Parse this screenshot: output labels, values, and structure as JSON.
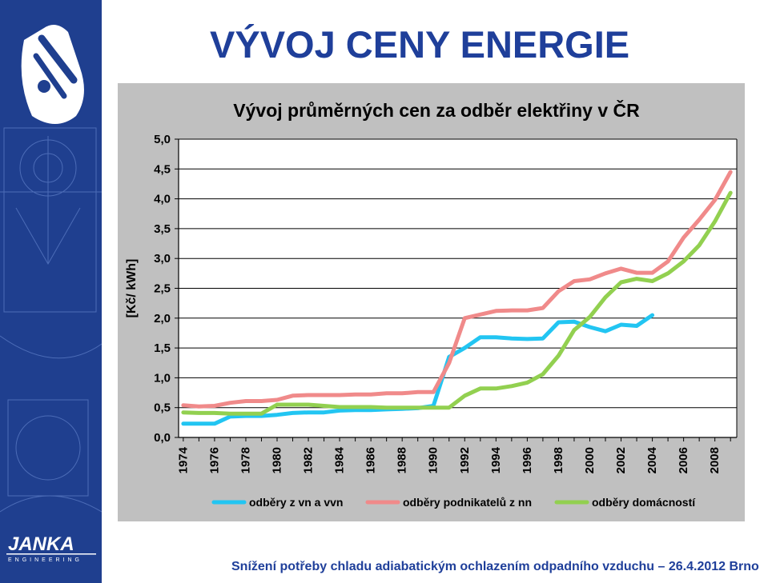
{
  "slide": {
    "title": "VÝVOJ CENY ENERGIE",
    "footer": "Snížení potřeby chladu adiabatickým ochlazením odpadního vzduchu – 26.4.2012 Brno",
    "logo_text": "JANKA",
    "logo_subtext": "ENGINEERING"
  },
  "colors": {
    "sidebar": "#1f3f8f",
    "title": "#1f3f9a",
    "panel": "#c0c0c0",
    "plot_bg": "#ffffff",
    "series_vn": "#22c5f2",
    "series_podnik": "#f08a8a",
    "series_domac": "#92d050"
  },
  "chart_data": {
    "type": "line",
    "title": "Vývoj průměrných cen za odběr elektřiny v ČR",
    "ylabel": "[Kč/ kWh]",
    "xlabel": "",
    "ylim": [
      0,
      5
    ],
    "ytick_labels": [
      "0,0",
      "0,5",
      "1,0",
      "1,5",
      "2,0",
      "2,5",
      "3,0",
      "3,5",
      "4,0",
      "4,5",
      "5,0"
    ],
    "xlim": [
      1974,
      2009
    ],
    "xtick_labels": [
      "1974",
      "1976",
      "1978",
      "1980",
      "1982",
      "1984",
      "1986",
      "1988",
      "1990",
      "1992",
      "1994",
      "1996",
      "1998",
      "2000",
      "2002",
      "2004",
      "2006",
      "2008"
    ],
    "grid": true,
    "legend": "bottom",
    "series": [
      {
        "name": "odběry z vn a vvn",
        "x": [
          1974,
          1975,
          1976,
          1977,
          1978,
          1979,
          1980,
          1981,
          1982,
          1983,
          1984,
          1985,
          1986,
          1987,
          1988,
          1989,
          1990,
          1991,
          1992,
          1993,
          1994,
          1995,
          1996,
          1997,
          1998,
          1999,
          2000,
          2001,
          2002,
          2003,
          2004
        ],
        "values": [
          0.23,
          0.23,
          0.23,
          0.35,
          0.36,
          0.36,
          0.38,
          0.41,
          0.42,
          0.42,
          0.45,
          0.46,
          0.46,
          0.47,
          0.48,
          0.49,
          0.53,
          1.35,
          1.5,
          1.68,
          1.68,
          1.66,
          1.65,
          1.66,
          1.93,
          1.94,
          1.85,
          1.78,
          1.89,
          1.87,
          2.05
        ]
      },
      {
        "name": "odběry podnikatelů z nn",
        "x": [
          1974,
          1975,
          1976,
          1977,
          1978,
          1979,
          1980,
          1981,
          1982,
          1983,
          1984,
          1985,
          1986,
          1987,
          1988,
          1989,
          1990,
          1991,
          1992,
          1993,
          1994,
          1995,
          1996,
          1997,
          1998,
          1999,
          2000,
          2001,
          2002,
          2003,
          2004,
          2005,
          2006,
          2007,
          2008,
          2009
        ],
        "values": [
          0.54,
          0.52,
          0.53,
          0.58,
          0.61,
          0.61,
          0.63,
          0.7,
          0.71,
          0.71,
          0.71,
          0.72,
          0.72,
          0.74,
          0.74,
          0.76,
          0.76,
          1.25,
          2.0,
          2.06,
          2.12,
          2.13,
          2.13,
          2.17,
          2.45,
          2.62,
          2.65,
          2.75,
          2.83,
          2.76,
          2.76,
          2.95,
          3.35,
          3.65,
          3.98,
          4.45
        ]
      },
      {
        "name": "odběry domácností",
        "x": [
          1974,
          1975,
          1976,
          1977,
          1978,
          1979,
          1980,
          1981,
          1982,
          1983,
          1984,
          1985,
          1986,
          1987,
          1988,
          1989,
          1990,
          1991,
          1992,
          1993,
          1994,
          1995,
          1996,
          1997,
          1998,
          1999,
          2000,
          2001,
          2002,
          2003,
          2004,
          2005,
          2006,
          2007,
          2008,
          2009
        ],
        "values": [
          0.42,
          0.41,
          0.41,
          0.4,
          0.4,
          0.4,
          0.55,
          0.55,
          0.55,
          0.53,
          0.51,
          0.51,
          0.51,
          0.5,
          0.5,
          0.5,
          0.5,
          0.5,
          0.7,
          0.82,
          0.82,
          0.86,
          0.92,
          1.06,
          1.37,
          1.8,
          2.02,
          2.35,
          2.6,
          2.66,
          2.62,
          2.75,
          2.95,
          3.22,
          3.62,
          4.1
        ]
      }
    ]
  }
}
